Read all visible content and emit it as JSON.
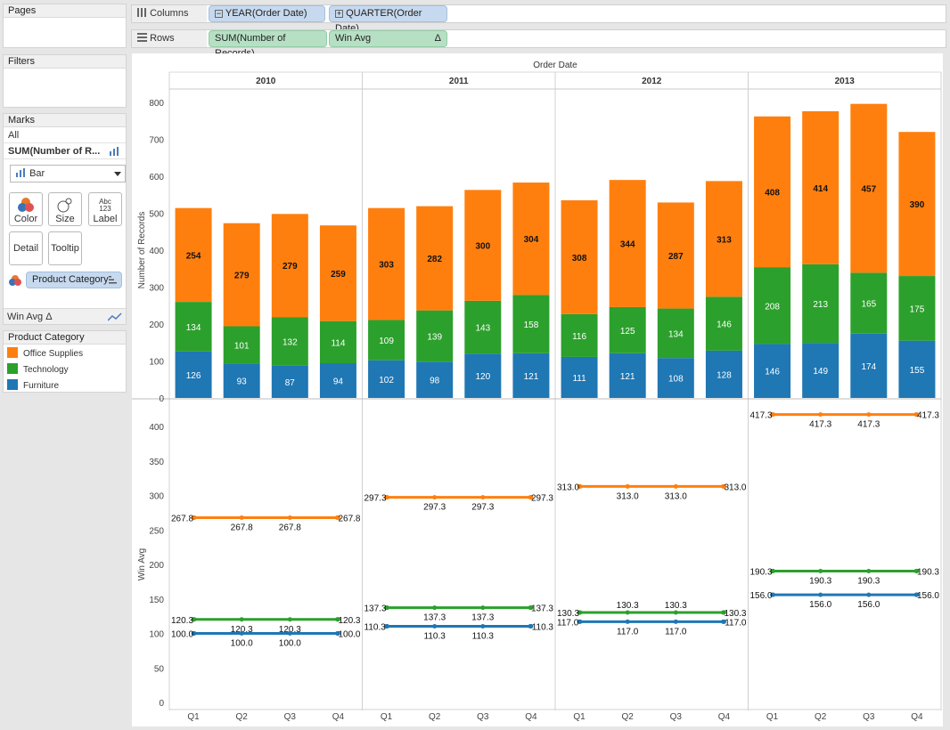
{
  "panels": {
    "pages": "Pages",
    "filters": "Filters",
    "marks": "Marks",
    "marks_all": "All",
    "marks_measure": "SUM(Number of R...",
    "mark_type": "Bar",
    "buttons": {
      "color": "Color",
      "size": "Size",
      "label": "Label",
      "label_icon_top": "Abc",
      "label_icon_bottom": "123",
      "detail": "Detail",
      "tooltip": "Tooltip"
    },
    "color_pill": "Product Category",
    "win_avg": "Win Avg",
    "legend_title": "Product Category"
  },
  "shelves": {
    "columns_label": "Columns",
    "rows_label": "Rows",
    "columns_pills": [
      "YEAR(Order Date)",
      "QUARTER(Order Date)"
    ],
    "rows_pills": [
      "SUM(Number of Records)",
      "Win Avg"
    ],
    "delta": "Δ"
  },
  "legend": [
    {
      "name": "Office Supplies",
      "color": "#ff7f0e"
    },
    {
      "name": "Technology",
      "color": "#2ca02c"
    },
    {
      "name": "Furniture",
      "color": "#1f77b4"
    }
  ],
  "chart_data": {
    "type": "bar",
    "header": "Order Date",
    "years": [
      "2010",
      "2011",
      "2012",
      "2013"
    ],
    "quarters": [
      "Q1",
      "Q2",
      "Q3",
      "Q4"
    ],
    "top": {
      "ylabel": "Number of Records",
      "ylim": [
        0,
        800
      ],
      "ticks": [
        "0",
        "100",
        "200",
        "300",
        "400",
        "500",
        "600",
        "700",
        "800"
      ],
      "series": [
        {
          "name": "Furniture",
          "values": [
            126,
            93,
            87,
            94,
            102,
            98,
            120,
            121,
            111,
            121,
            108,
            128,
            146,
            149,
            174,
            155
          ]
        },
        {
          "name": "Technology",
          "values": [
            134,
            101,
            132,
            114,
            109,
            139,
            143,
            158,
            116,
            125,
            134,
            146,
            208,
            213,
            165,
            175
          ]
        },
        {
          "name": "Office Supplies",
          "values": [
            254,
            279,
            279,
            259,
            303,
            282,
            300,
            304,
            308,
            344,
            287,
            313,
            408,
            414,
            457,
            390
          ]
        }
      ]
    },
    "bottom": {
      "type": "line",
      "ylabel": "Win Avg",
      "ylim": [
        0,
        400
      ],
      "ticks": [
        "0",
        "50",
        "100",
        "150",
        "200",
        "250",
        "300",
        "350",
        "400"
      ],
      "series": [
        {
          "name": "Office Supplies",
          "values": [
            267.8,
            297.3,
            313.0,
            417.3
          ]
        },
        {
          "name": "Technology",
          "values": [
            120.3,
            137.3,
            130.3,
            190.3
          ]
        },
        {
          "name": "Furniture",
          "values": [
            100.0,
            110.3,
            117.0,
            156.0
          ]
        }
      ],
      "labels": [
        [
          "267.8",
          "297.3",
          "313.0",
          "417.3"
        ],
        [
          "120.3",
          "137.3",
          "130.3",
          "190.3"
        ],
        [
          "100.0",
          "110.3",
          "117.0",
          "156.0"
        ]
      ]
    }
  }
}
